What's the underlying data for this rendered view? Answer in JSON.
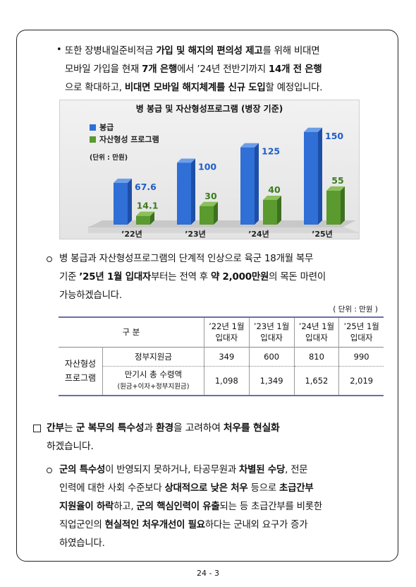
{
  "para1": {
    "bullet": "•",
    "line1": [
      {
        "t": "또한 장병내일준비적금 ",
        "b": false
      },
      {
        "t": "가입 및 해지의 편의성 제고",
        "b": true
      },
      {
        "t": "를 위해 비대면",
        "b": false
      }
    ],
    "line2": [
      {
        "t": "모바일 가입을 현재 ",
        "b": false
      },
      {
        "t": "7개 은행",
        "b": true
      },
      {
        "t": "에서 ’24년 전반기까지 ",
        "b": false
      },
      {
        "t": "14개 전 은행",
        "b": true
      }
    ],
    "line3": [
      {
        "t": "으로 확대하고, ",
        "b": false
      },
      {
        "t": "비대면 모바일 해지체계를 신규 도입",
        "b": true
      },
      {
        "t": "할 예정입니다.",
        "b": false
      }
    ]
  },
  "chart_data": {
    "type": "bar",
    "title": "병 봉급 및 자산형성프로그램 (병장 기준)",
    "unit_label": "(단위 : 만원)",
    "categories": [
      "’22년",
      "’23년",
      "’24년",
      "’25년"
    ],
    "series": [
      {
        "name": "봉급",
        "color": "#2f6fd6",
        "values": [
          67.6,
          100,
          125,
          150
        ]
      },
      {
        "name": "자산형성 프로그램",
        "color": "#5a9a2e",
        "values": [
          14.1,
          30,
          40,
          55
        ]
      }
    ],
    "data_labels": [
      [
        "67.6",
        "100",
        "125",
        "150"
      ],
      [
        "14.1",
        "30",
        "40",
        "55"
      ]
    ],
    "ylim": [
      0,
      160
    ],
    "legend_position": "top-left"
  },
  "para2": {
    "line1": [
      {
        "t": "병 봉급과 자산형성프로그램의 단계적 인상으로 육군 18개월 복무",
        "b": false
      }
    ],
    "line2": [
      {
        "t": "기준 ",
        "b": false
      },
      {
        "t": "’25년 1월 입대자",
        "b": true
      },
      {
        "t": "부터는 전역 후 ",
        "b": false
      },
      {
        "t": "약 2,000만원",
        "b": true
      },
      {
        "t": "의 목돈 마련이",
        "b": false
      }
    ],
    "line3": [
      {
        "t": "가능하겠습니다.",
        "b": false
      }
    ]
  },
  "table": {
    "unit": "( 단위 : 만원 )",
    "header_label": "구  분",
    "columns": [
      {
        "l1": "’22년 1월",
        "l2": "입대자"
      },
      {
        "l1": "’23년 1월",
        "l2": "입대자"
      },
      {
        "l1": "’24년 1월",
        "l2": "입대자"
      },
      {
        "l1": "’25년 1월",
        "l2": "입대자"
      }
    ],
    "group_l1": "자산형성",
    "group_l2": "프로그램",
    "rows": [
      {
        "label": "정부지원금",
        "sub": "",
        "values": [
          "349",
          "600",
          "810",
          "990"
        ]
      },
      {
        "label": "만기시 총 수령액",
        "sub": "(원금+이자+정부지원금)",
        "values": [
          "1,098",
          "1,349",
          "1,652",
          "2,019"
        ]
      }
    ]
  },
  "para3": {
    "line1": [
      {
        "t": "간부",
        "b": true
      },
      {
        "t": "는 ",
        "b": false
      },
      {
        "t": "군 복무의 특수성",
        "b": true
      },
      {
        "t": "과 ",
        "b": false
      },
      {
        "t": "환경",
        "b": true
      },
      {
        "t": "을 고려하여 ",
        "b": false
      },
      {
        "t": "처우를 현실화",
        "b": true
      }
    ],
    "line2": [
      {
        "t": "하겠습니다.",
        "b": false
      }
    ]
  },
  "para4": {
    "line1": [
      {
        "t": "군의 특수성",
        "b": true
      },
      {
        "t": "이 반영되지 못하거나, 타공무원과 ",
        "b": false
      },
      {
        "t": "차별된 수당",
        "b": true
      },
      {
        "t": ", 전문",
        "b": false
      }
    ],
    "line2": [
      {
        "t": "인력에 대한 사회 수준보다 ",
        "b": false
      },
      {
        "t": "상대적으로 낮은 처우",
        "b": true
      },
      {
        "t": " 등으로 ",
        "b": false
      },
      {
        "t": "초급간부",
        "b": true
      }
    ],
    "line3": [
      {
        "t": "지원율이 하락",
        "b": true
      },
      {
        "t": "하고, ",
        "b": false
      },
      {
        "t": "군의 핵심인력이 유출",
        "b": true
      },
      {
        "t": "되는 등 초급간부를 비롯한",
        "b": false
      }
    ],
    "line4": [
      {
        "t": "직업군인의 ",
        "b": false
      },
      {
        "t": "현실적인 처우개선이 필요",
        "b": true
      },
      {
        "t": "하다는 군내외 요구가 증가",
        "b": false
      }
    ],
    "line5": [
      {
        "t": "하였습니다.",
        "b": false
      }
    ]
  },
  "footer": {
    "page": "24 - 3"
  }
}
